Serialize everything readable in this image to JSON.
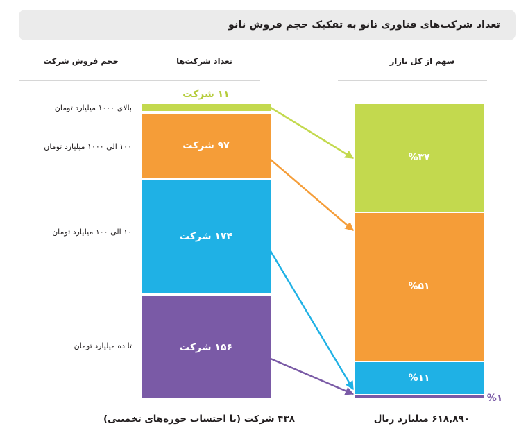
{
  "title": "تعداد شرکت‌های فناوری نانو به تفکیک حجم فروش نانو",
  "headers": {
    "sales_volume": "حجم فروش شرکت",
    "company_count": "تعداد شرکت‌ها",
    "market_share": "سهم از کل بازار"
  },
  "chart_data": {
    "type": "bar",
    "title": "تعداد شرکت‌های فناوری نانو به تفکیک حجم فروش نانو",
    "categories": [
      "بالای ۱۰۰۰ میلیارد تومان",
      "۱۰۰ الی ۱۰۰۰ میلیارد تومان",
      "۱۰ الی ۱۰۰ میلیارد تومان",
      "تا ده میلیارد تومان"
    ],
    "series": [
      {
        "name": "تعداد شرکت‌ها",
        "values": [
          11,
          97,
          174,
          156
        ],
        "labels": [
          "۱۱ شرکت",
          "۹۷ شرکت",
          "۱۷۴ شرکت",
          "۱۵۶ شرکت"
        ]
      },
      {
        "name": "سهم از کل بازار",
        "values": [
          37,
          51,
          11,
          1
        ],
        "labels": [
          "%۳۷",
          "%۵۱",
          "%۱۱",
          "%۱"
        ]
      }
    ],
    "colors": [
      "#c3d94e",
      "#f59d38",
      "#1fb1e5",
      "#7a5aa6"
    ],
    "totals": {
      "companies": "۴۳۸ شرکت (با احتساب حوزه‌های تخمینی)",
      "market": "۶۱۸,۸۹۰ میلیارد ریال"
    },
    "stacked": true,
    "legend": "none",
    "grid": false
  }
}
